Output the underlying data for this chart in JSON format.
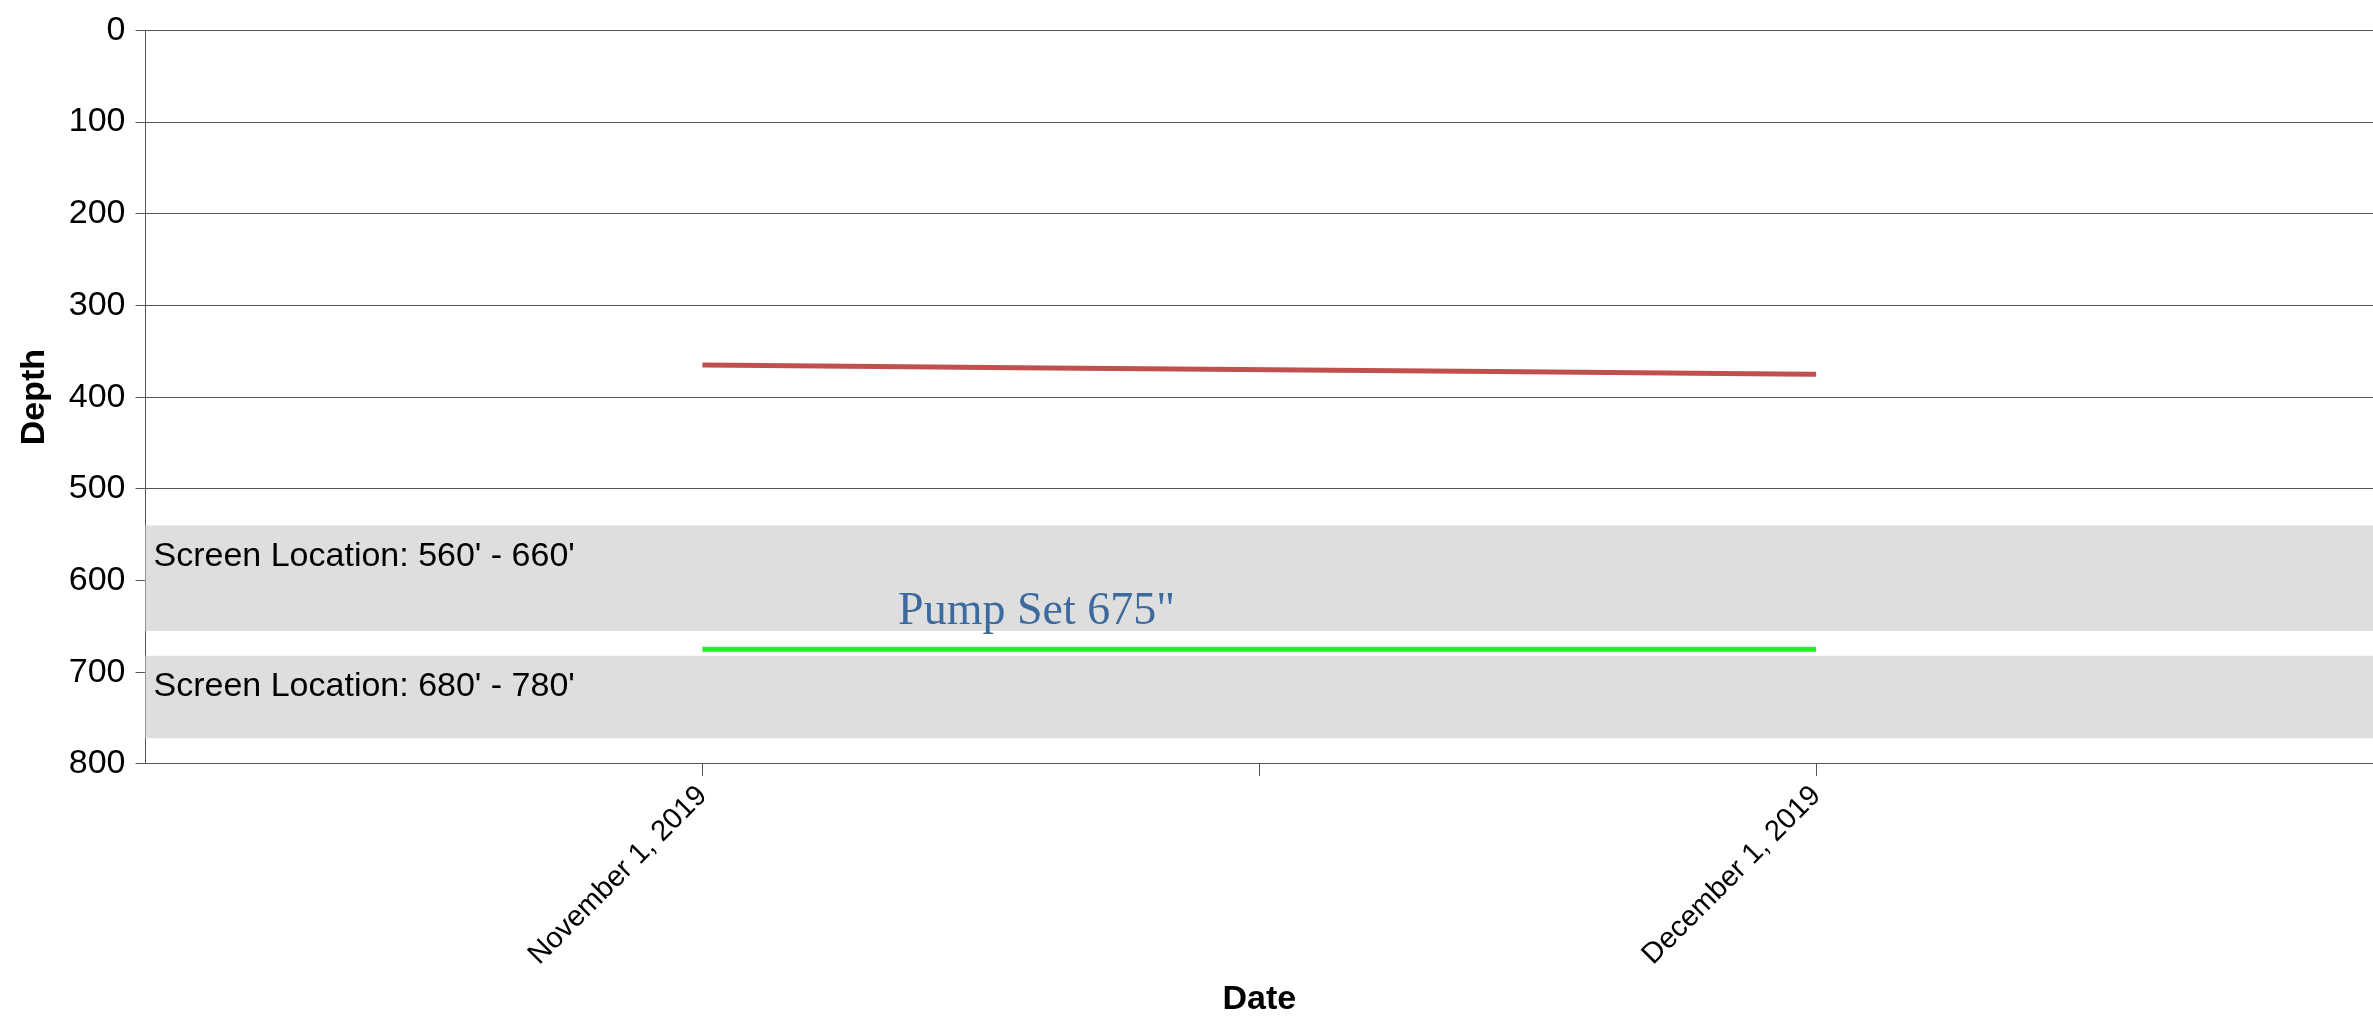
{
  "chart_data": {
    "type": "line",
    "xlabel": "Date",
    "ylabel": "Depth",
    "xlim": [
      "2019-10-17",
      "2019-12-16"
    ],
    "xticks": [
      {
        "value": "2019-11-01",
        "label": "November 1, 2019"
      },
      {
        "value": "2019-11-16",
        "label": null
      },
      {
        "value": "2019-12-01",
        "label": "December 1, 2019"
      }
    ],
    "ylim": [
      800,
      0
    ],
    "yticks": [
      0,
      100,
      200,
      300,
      400,
      500,
      600,
      700,
      800
    ],
    "grid": "y",
    "series": [
      {
        "color": "#c0504d",
        "x": [
          "2019-11-01",
          "2019-12-01"
        ],
        "values": [
          365,
          375
        ]
      },
      {
        "color": "#22ee22",
        "x": [
          "2019-11-01",
          "2019-12-01"
        ],
        "values": [
          675,
          675
        ]
      }
    ],
    "bands": [
      {
        "axis": "y",
        "from": 540,
        "to": 655,
        "label": "Screen Location: 560' - 660'",
        "color": "#dedede"
      },
      {
        "axis": "y",
        "from": 682,
        "to": 772,
        "label": "Screen Location: 680' - 780'",
        "color": "#dedede"
      }
    ],
    "annotations": [
      {
        "text": "Pump Set 675\"",
        "x": "2019-11-10",
        "y": 675
      }
    ]
  }
}
